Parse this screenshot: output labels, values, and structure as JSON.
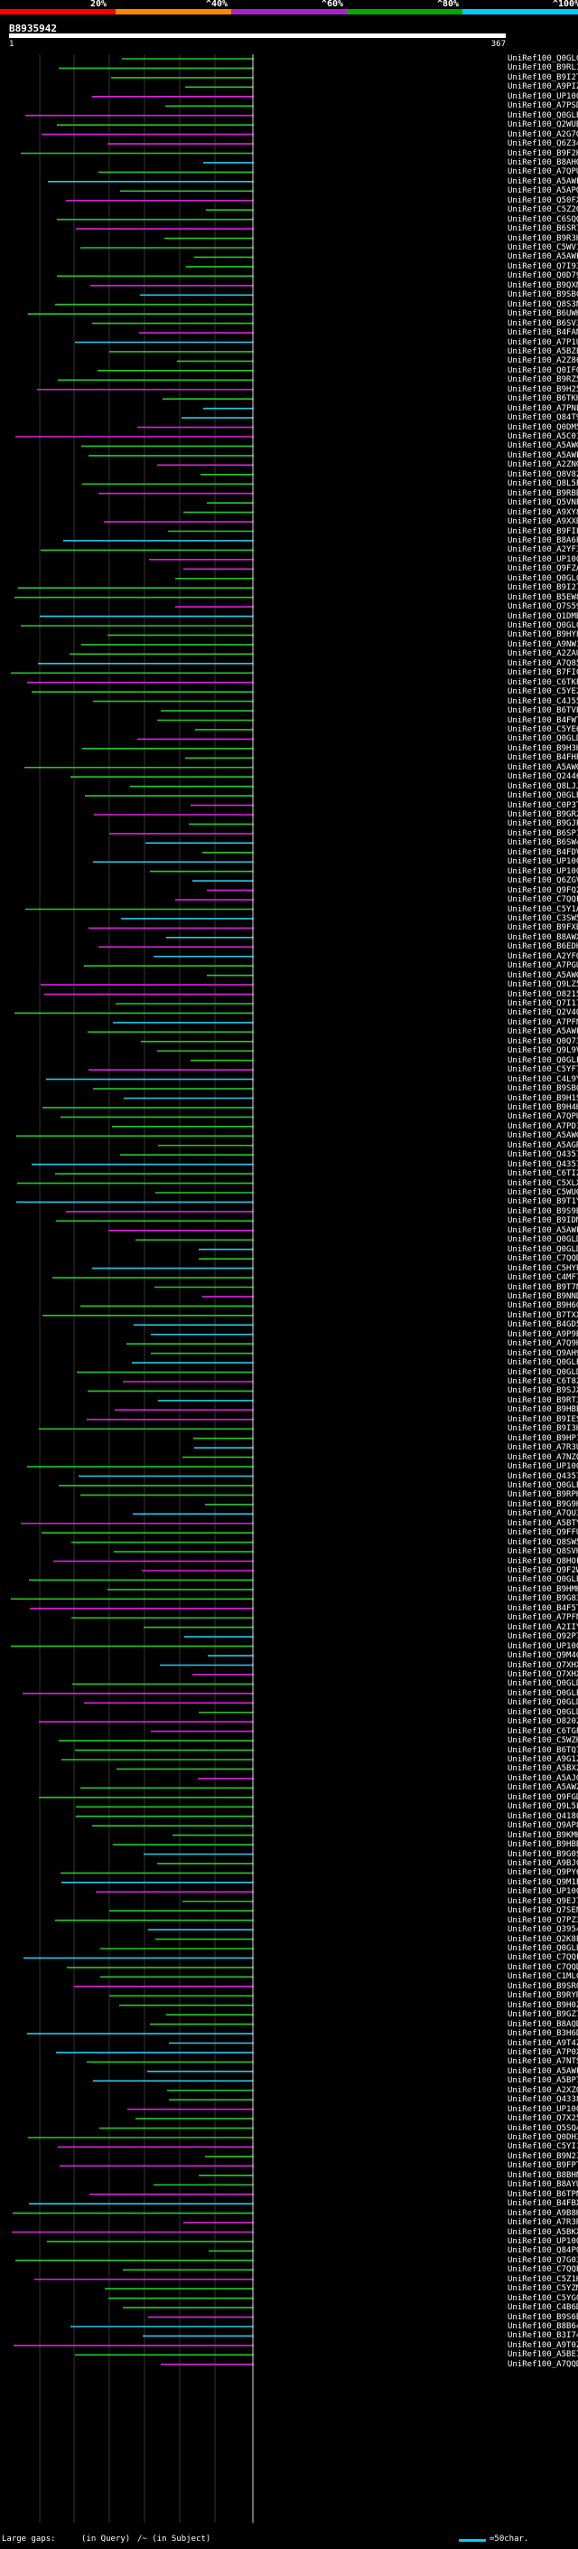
{
  "legend": {
    "segments": [
      {
        "label": "20%",
        "color": "#ff0000"
      },
      {
        "label": "^40%",
        "color": "#ff8800"
      },
      {
        "label": "^60%",
        "color": "#aa22cc"
      },
      {
        "label": "^80%",
        "color": "#00aa00"
      },
      {
        "label": "^100%",
        "color": "#00ccff"
      }
    ]
  },
  "query": {
    "id": "B8935942",
    "start": "1",
    "end": "367"
  },
  "colors": {
    "magenta": "#e020e0",
    "green": "#22cc22",
    "cyan": "#22ccee",
    "white": "#ffffff"
  },
  "hits": [
    "UniRef100_Q0GLC9",
    "UniRef100_B9RL13",
    "UniRef100_B9I2T1",
    "UniRef100_A9PIZ1",
    "UniRef100_UP1000...",
    "UniRef100_A7PSD2",
    "UniRef100_Q0GLE8",
    "UniRef100_Q2WUB6",
    "UniRef100_A2G7Q0",
    "UniRef100_Q6Z345",
    "UniRef100_B9F2H2",
    "UniRef100_B8AHQ4",
    "UniRef100_A7QPU2",
    "UniRef100_A5AWF7",
    "UniRef100_A5APQ1",
    "UniRef100_Q50FX8",
    "UniRef100_C5Z2Q2",
    "UniRef100_C6SQQ8",
    "UniRef100_B6SR78",
    "UniRef100_B9R3H1",
    "UniRef100_C5WV12",
    "UniRef100_A5AWF3",
    "UniRef100_Q7I931",
    "UniRef100_Q0D798",
    "UniRef100_B9QXN4",
    "UniRef100_B9SBC0",
    "UniRef100_Q8S3N4",
    "UniRef100_B6UWH0",
    "UniRef100_B6SV34",
    "UniRef100_B4FAN2",
    "UniRef100_A7P1U8",
    "UniRef100_A5BZE7",
    "UniRef100_A2Z866",
    "UniRef100_Q0IFG4",
    "UniRef100_B9RZ54",
    "UniRef100_B9H257",
    "UniRef100_B6TKH0",
    "UniRef100_A7PNL3",
    "UniRef100_Q84T97",
    "UniRef100_Q0DM59",
    "UniRef100_A5C015",
    "UniRef100_A5AWG1",
    "UniRef100_A5AWF0",
    "UniRef100_A2ZNG3",
    "UniRef100_Q8V828",
    "UniRef100_Q8L5E9",
    "UniRef100_B9RBB8",
    "UniRef100_Q5VNE4",
    "UniRef100_A9XY80",
    "UniRef100_A9XXB6",
    "UniRef100_B9FIL8",
    "UniRef100_B8A6P5",
    "UniRef100_A2YF38",
    "UniRef100_UP1000...",
    "UniRef100_Q9FZA4",
    "UniRef100_Q0GLC5",
    "UniRef100_B9I277",
    "UniRef100_B5EW81",
    "UniRef100_Q7S590",
    "UniRef100_Q1DMB0",
    "UniRef100_Q0GLC7",
    "UniRef100_B9HYL3",
    "UniRef100_A9NW11",
    "UniRef100_A2ZAU0",
    "UniRef100_A7Q857",
    "UniRef100_B7FIC9",
    "UniRef100_C6TKP1",
    "UniRef100_C5YE28",
    "UniRef100_C4J556",
    "UniRef100_B6TVE8",
    "UniRef100_B4FWT7",
    "UniRef100_C5YE68",
    "UniRef100_Q0GLD6",
    "UniRef100_B9H3H4",
    "UniRef100_B4FHP9",
    "UniRef100_A5AWG4",
    "UniRef100_Q24463",
    "UniRef100_Q8LJJ0",
    "UniRef100_Q0GLE0",
    "UniRef100_C0P3T8",
    "UniRef100_B9GR23",
    "UniRef100_B9GJP7",
    "UniRef100_B6SP17",
    "UniRef100_B6SW41",
    "UniRef100_B4FDV8",
    "UniRef100_UP1000...",
    "UniRef100_UP1000...",
    "UniRef100_Q6ZGV0",
    "UniRef100_Q9FQ23",
    "UniRef100_C7QQF6",
    "UniRef100_C5Y1A1",
    "UniRef100_C3SW55",
    "UniRef100_B9FXB2",
    "UniRef100_B8AWX2",
    "UniRef100_B6EDH1",
    "UniRef100_A2YFQ1",
    "UniRef100_A7PGU3",
    "UniRef100_A5AWG6",
    "UniRef100_Q9LZ56",
    "UniRef100_O82155",
    "UniRef100_Q7I170",
    "UniRef100_Q2V4Q1",
    "UniRef100_A7PFN7",
    "UniRef100_A5AWF1",
    "UniRef100_Q0Q733",
    "UniRef100_Q9L9V6",
    "UniRef100_Q0GLF0",
    "UniRef100_C5YF72",
    "UniRef100_C4L9Y9",
    "UniRef100_B9SB01",
    "UniRef100_B9H1S0",
    "UniRef100_B9H4H8",
    "UniRef100_A7QPU1",
    "UniRef100_A7PD10",
    "UniRef100_A5AWG3",
    "UniRef100_A5AGR5",
    "UniRef100_Q43574",
    "UniRef100_Q43573",
    "UniRef100_C6TI29",
    "UniRef100_C5XLX9",
    "UniRef100_C5WUG4",
    "UniRef100_B9T1Y3",
    "UniRef100_B9S9B1",
    "UniRef100_B9IDM4",
    "UniRef100_A5AWF5",
    "UniRef100_Q0GLD3",
    "UniRef100_Q0GLD2",
    "UniRef100_C7QQD6",
    "UniRef100_C5HYP6",
    "UniRef100_C4MF78",
    "UniRef100_B9T7N4",
    "UniRef100_B9NND5",
    "UniRef100_B9H6G8",
    "UniRef100_B7TXX8",
    "UniRef100_B4GD52",
    "UniRef100_A9P9B5",
    "UniRef100_A7Q9H0",
    "UniRef100_Q9AH96",
    "UniRef100_Q0GLE7",
    "UniRef100_Q0GLD8",
    "UniRef100_C6T821",
    "UniRef100_B9SJX7",
    "UniRef100_B9RT34",
    "UniRef100_B9HBE6",
    "UniRef100_B9IES2",
    "UniRef100_B9I3H6",
    "UniRef100_B9HP16",
    "UniRef100_A7R3U9",
    "UniRef100_A7NZQ4",
    "UniRef100_UP1000...",
    "UniRef100_Q43575",
    "UniRef100_Q0GLE5",
    "UniRef100_B9RPH9",
    "UniRef100_B9G9H0",
    "UniRef100_A7QU31",
    "UniRef100_A5BTY5",
    "UniRef100_Q9FFU8",
    "UniRef100_Q8SW51",
    "UniRef100_Q8SVK0",
    "UniRef100_Q8HOF5",
    "UniRef100_Q9F2W0",
    "UniRef100_Q0GLE4",
    "UniRef100_B9HMH1",
    "UniRef100_B9G839",
    "UniRef100_B4F5T2",
    "UniRef100_A7PFN5",
    "UniRef100_A2IIY6",
    "UniRef100_Q92P70",
    "UniRef100_UP1000...",
    "UniRef100_Q9M4G1",
    "UniRef100_Q7XHX2",
    "UniRef100_Q7XHX0",
    "UniRef100_Q0GLD1",
    "UniRef100_Q0GLE1",
    "UniRef100_Q0GLD0",
    "UniRef100_Q0GLD0",
    "UniRef100_O82027",
    "UniRef100_C6TGP4",
    "UniRef100_C5WZK7",
    "UniRef100_B6TQ76",
    "UniRef100_A9G1Z0",
    "UniRef100_A5BX28",
    "UniRef100_A5AJG0",
    "UniRef100_A5AWZ7",
    "UniRef100_Q9FGD6",
    "UniRef100_Q9L5L6",
    "UniRef100_Q41801",
    "UniRef100_Q9AP89",
    "UniRef100_B9KMH4",
    "UniRef100_B9HBB8",
    "UniRef100_B9G0S9",
    "UniRef100_A9BJC7",
    "UniRef100_Q9PY63",
    "UniRef100_Q9M1E6",
    "UniRef100_UP1000...",
    "UniRef100_Q9EJ7S",
    "UniRef100_Q7SEN1",
    "UniRef100_Q7PZ39",
    "UniRef100_Q39540",
    "UniRef100_Q2K8E9",
    "UniRef100_Q0GLE2",
    "UniRef100_C7QQF1",
    "UniRef100_C7QQD7",
    "UniRef100_C1MLC0",
    "UniRef100_B9SR09",
    "UniRef100_B9RYR1",
    "UniRef100_B9H0Z9",
    "UniRef100_B9GZ70",
    "UniRef100_B8AQD0",
    "UniRef100_B3H6D1",
    "UniRef100_A9T4Z0",
    "UniRef100_A7P0X5",
    "UniRef100_A7NTS0",
    "UniRef100_A5AWF4",
    "UniRef100_A5BP76",
    "UniRef100_A2XZQ1",
    "UniRef100_Q43385",
    "UniRef100_UP1000...",
    "UniRef100_Q7X251",
    "UniRef100_Q5SQ49",
    "UniRef100_Q0DH33",
    "UniRef100_C5YI17",
    "UniRef100_B9N2I3",
    "UniRef100_B9FPT7",
    "UniRef100_B8BHN5",
    "UniRef100_B8AYU4",
    "UniRef100_B6TPN6",
    "UniRef100_B4FBX3",
    "UniRef100_A9B8H4",
    "UniRef100_A7R3R2",
    "UniRef100_A5BKX3",
    "UniRef100_UP1000...",
    "UniRef100_Q84P02",
    "UniRef100_Q7G037",
    "UniRef100_C7QQE3",
    "UniRef100_C5Z1K4",
    "UniRef100_C5YZM8",
    "UniRef100_C5YG00",
    "UniRef100_C4B6D7",
    "UniRef100_B9S6B0",
    "UniRef100_B8B645",
    "UniRef100_B3I744",
    "UniRef100_A9T0Z3",
    "UniRef100_A5BEI3",
    "UniRef100_A7QQD1"
  ],
  "footer": {
    "gaps_label": "Large gaps:",
    "query_gap": "(in Query)",
    "subject_gap": "/~ (in Subject)",
    "scale": "=50char."
  }
}
